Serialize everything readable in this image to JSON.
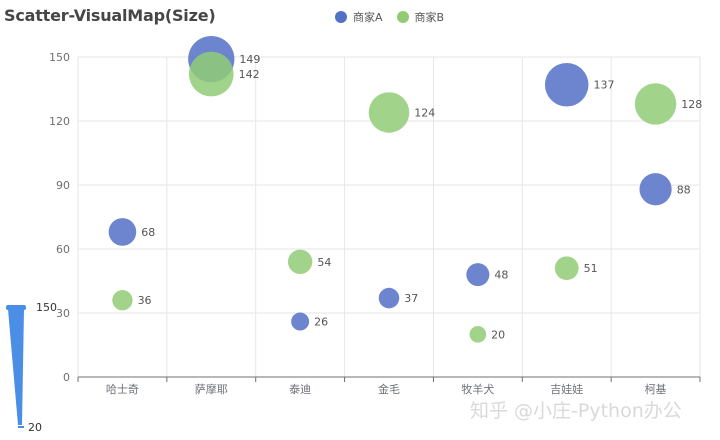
{
  "title": "Scatter-VisualMap(Size)",
  "legend": [
    {
      "name": "商家A",
      "color": "#5470c6"
    },
    {
      "name": "商家B",
      "color": "#91cc75"
    }
  ],
  "visual_map": {
    "max_label": "150",
    "min_label": "20",
    "color": "#4a8ee6"
  },
  "watermark": "知乎 @小庄-Python办公",
  "chart_data": {
    "type": "scatter",
    "title": "Scatter-VisualMap(Size)",
    "categories": [
      "哈士奇",
      "萨摩耶",
      "泰迪",
      "金毛",
      "牧羊犬",
      "吉娃娃",
      "柯基"
    ],
    "series": [
      {
        "name": "商家A",
        "color": "#5470c6",
        "values": [
          68,
          149,
          26,
          37,
          48,
          137,
          88
        ]
      },
      {
        "name": "商家B",
        "color": "#91cc75",
        "values": [
          36,
          142,
          54,
          124,
          20,
          51,
          128
        ]
      }
    ],
    "xlabel": "",
    "ylabel": "",
    "ylim": [
      0,
      150
    ],
    "yticks": [
      0,
      30,
      60,
      90,
      120,
      150
    ],
    "grid": true,
    "legend_position": "top",
    "visual_map": {
      "dimension": "size",
      "min": 20,
      "max": 150
    }
  }
}
